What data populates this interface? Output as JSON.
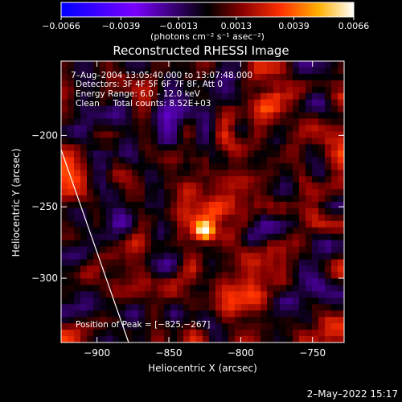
{
  "chart_data": {
    "type": "heatmap",
    "title": "Reconstructed RHESSI Image",
    "xlabel": "Heliocentric X (arcsec)",
    "ylabel": "Heliocentric Y (arcsec)",
    "xlim": [
      -925,
      -728
    ],
    "ylim": [
      -345,
      -148
    ],
    "xticks": [
      -900,
      -850,
      -800,
      -750
    ],
    "yticks": [
      -200,
      -250,
      -300
    ],
    "xtick_labels": [
      "−900",
      "−850",
      "−800",
      "−750"
    ],
    "ytick_labels": [
      "−200",
      "−250",
      "−300"
    ],
    "colorbar": {
      "range": [
        -0.0066,
        0.0066
      ],
      "ticks": [
        -0.0066,
        -0.0039,
        -0.0013,
        0.0013,
        0.0039,
        0.0066
      ],
      "tick_labels": [
        "−0.0066",
        "−0.0039",
        "−0.0013",
        "0.0013",
        "0.0039",
        "0.0066"
      ],
      "units_label": "(photons cm⁻² s⁻¹ asec⁻²)",
      "colors": [
        "#0000ff",
        "#7a00ff",
        "#000000",
        "#8a0000",
        "#ff3000",
        "#ffb000",
        "#ffffff"
      ]
    },
    "annotations": {
      "time": "7–Aug–2004 13:05:40.000 to 13:07:48.000",
      "detectors": "Detectors: 3F 4F 5F 6F 7F 8F, Att 0",
      "energy": "Energy Range: 6.0 – 12.0 keV",
      "clean": "Clean     Total counts: 8.52E+03",
      "peak": "Position of Peak = [−825,−267]"
    },
    "peak": {
      "x": -825,
      "y": -267
    },
    "limb_line": {
      "x1": -925,
      "y1": -210,
      "x2": -878,
      "y2": -345
    }
  },
  "footer": {
    "timestamp": "2–May–2022 15:17"
  }
}
